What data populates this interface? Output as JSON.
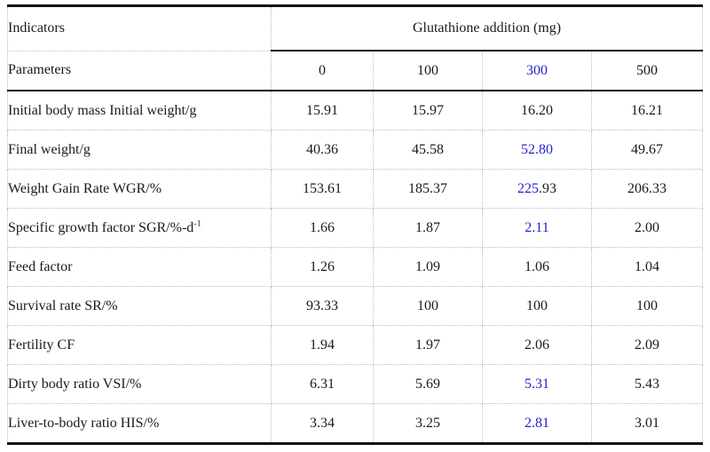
{
  "colors": {
    "text": "#1a1a1a",
    "highlight": "#2222cc"
  },
  "table": {
    "header": {
      "indicators_label": "Indicators",
      "parameters_label": "Parameters",
      "group_label": "Glutathione addition (mg)",
      "doses": [
        {
          "label": "0",
          "color": "#1a1a1a"
        },
        {
          "label": "100",
          "color": "#1a1a1a"
        },
        {
          "label": "300",
          "color": "#2222cc"
        },
        {
          "label": "500",
          "color": "#1a1a1a"
        }
      ]
    },
    "rows": [
      {
        "label_parts": [
          {
            "t": "Initial body mass Initial weight/g"
          }
        ],
        "cells": [
          [
            {
              "t": "15.91"
            }
          ],
          [
            {
              "t": "15.97"
            }
          ],
          [
            {
              "t": "16.20"
            }
          ],
          [
            {
              "t": "16.21"
            }
          ]
        ]
      },
      {
        "label_parts": [
          {
            "t": "Final weight/g"
          }
        ],
        "cells": [
          [
            {
              "t": "40.36"
            }
          ],
          [
            {
              "t": "45.58"
            }
          ],
          [
            {
              "t": "52.80",
              "c": "highlight"
            }
          ],
          [
            {
              "t": "49.67"
            }
          ]
        ]
      },
      {
        "label_parts": [
          {
            "t": "Weight Gain Rate WGR/%"
          }
        ],
        "cells": [
          [
            {
              "t": "153.61"
            }
          ],
          [
            {
              "t": "185.37"
            }
          ],
          [
            {
              "t": "225",
              "c": "highlight"
            },
            {
              "t": ".93"
            }
          ],
          [
            {
              "t": "206.33"
            }
          ]
        ]
      },
      {
        "label_parts": [
          {
            "t": "Specific growth factor SGR/%-d"
          },
          {
            "t": "-1",
            "sup": true
          }
        ],
        "cells": [
          [
            {
              "t": "1.66"
            }
          ],
          [
            {
              "t": "1.87"
            }
          ],
          [
            {
              "t": "2.11",
              "c": "highlight"
            }
          ],
          [
            {
              "t": "2.00"
            }
          ]
        ]
      },
      {
        "label_parts": [
          {
            "t": "Feed factor"
          }
        ],
        "cells": [
          [
            {
              "t": "1.26"
            }
          ],
          [
            {
              "t": "1.09"
            }
          ],
          [
            {
              "t": "1.06"
            }
          ],
          [
            {
              "t": "1.04"
            }
          ]
        ]
      },
      {
        "label_parts": [
          {
            "t": "Survival rate SR/%"
          }
        ],
        "cells": [
          [
            {
              "t": "93.33"
            }
          ],
          [
            {
              "t": "100"
            }
          ],
          [
            {
              "t": "100"
            }
          ],
          [
            {
              "t": "100"
            }
          ]
        ]
      },
      {
        "label_parts": [
          {
            "t": "Fertility CF"
          }
        ],
        "cells": [
          [
            {
              "t": "1.94"
            }
          ],
          [
            {
              "t": "1.97"
            }
          ],
          [
            {
              "t": "2.06"
            }
          ],
          [
            {
              "t": "2.09"
            }
          ]
        ]
      },
      {
        "label_parts": [
          {
            "t": "Dirty body ratio VSI/%"
          }
        ],
        "cells": [
          [
            {
              "t": "6.31"
            }
          ],
          [
            {
              "t": "5.69"
            }
          ],
          [
            {
              "t": "5.31",
              "c": "highlight"
            }
          ],
          [
            {
              "t": "5.43"
            }
          ]
        ]
      },
      {
        "label_parts": [
          {
            "t": "Liver-to-body ratio HIS/%"
          }
        ],
        "cells": [
          [
            {
              "t": "3.34"
            }
          ],
          [
            {
              "t": "3.25"
            }
          ],
          [
            {
              "t": "2.81",
              "c": "highlight"
            }
          ],
          [
            {
              "t": "3.01"
            }
          ]
        ]
      }
    ]
  }
}
